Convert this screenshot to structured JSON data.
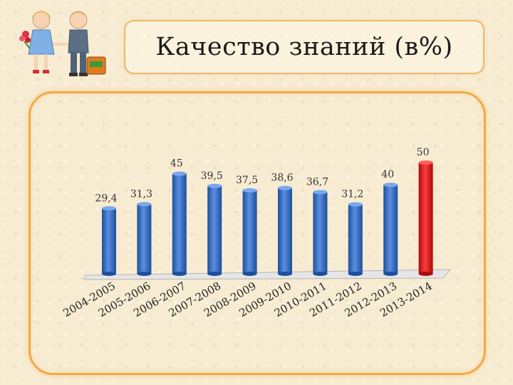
{
  "title": "Качество знаний (в%)",
  "chart_data": {
    "type": "bar",
    "title": "Качество знаний (в%)",
    "categories": [
      "2004-2005",
      "2005-2006",
      "2006-2007",
      "2007-2008",
      "2008-2009",
      "2009-2010",
      "2010-2011",
      "2011-2012",
      "2012-2013",
      "2013-2014"
    ],
    "values": [
      29.4,
      31.3,
      45,
      39.5,
      37.5,
      38.6,
      36.7,
      31.2,
      40,
      50
    ],
    "value_labels": [
      "29,4",
      "31,3",
      "45",
      "39,5",
      "37,5",
      "38,6",
      "36,7",
      "31,2",
      "40",
      "50"
    ],
    "xlabel": "",
    "ylabel": "",
    "ylim": [
      0,
      50
    ],
    "grid": false,
    "legend": "none",
    "bar_color": "#3a6fc4",
    "highlight_color": "#e3161a",
    "highlight_index": 9
  }
}
